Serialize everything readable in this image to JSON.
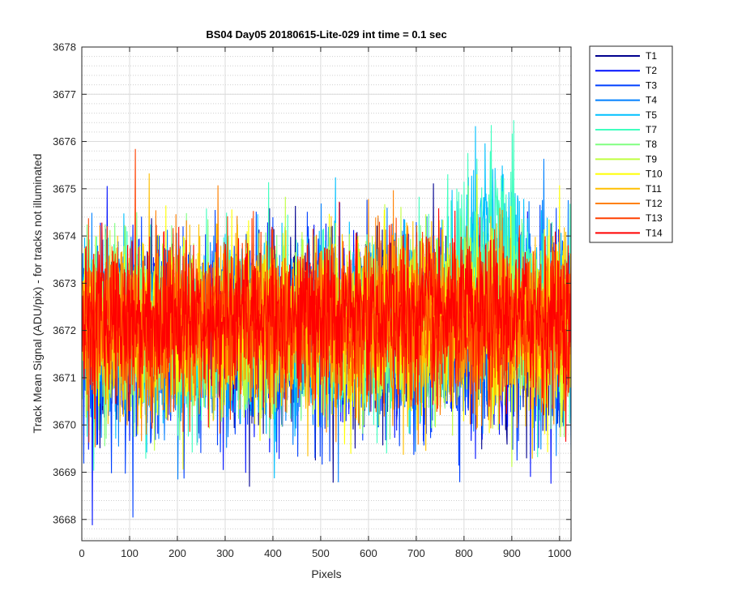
{
  "chart_data": {
    "type": "line",
    "title": "BS04 Day05 20180615-Lite-029 int time = 0.1 sec",
    "xlabel": "Pixels",
    "ylabel": "Track Mean Signal (ADU/pix) - for tracks not illuminated",
    "xlim": [
      0,
      1024
    ],
    "ylim": [
      3667.55,
      3678
    ],
    "xticks": [
      0,
      100,
      200,
      300,
      400,
      500,
      600,
      700,
      800,
      900,
      1000
    ],
    "yticks": [
      3668,
      3669,
      3670,
      3671,
      3672,
      3673,
      3674,
      3675,
      3676,
      3677,
      3678
    ],
    "grid": true,
    "minor_grid": true,
    "legend_position": "outside-top-right",
    "pixel_count": 1024,
    "series": [
      {
        "name": "T1",
        "color": "#00008f",
        "mean": 3672.0,
        "sd": 0.95,
        "bump": 0.0
      },
      {
        "name": "T2",
        "color": "#0010ff",
        "mean": 3671.9,
        "sd": 1.0,
        "bump": 0.0
      },
      {
        "name": "T3",
        "color": "#0040ff",
        "mean": 3671.8,
        "sd": 1.0,
        "bump": 0.0
      },
      {
        "name": "T4",
        "color": "#0080ff",
        "mean": 3672.0,
        "sd": 0.95,
        "bump": 0.6
      },
      {
        "name": "T5",
        "color": "#00c0ff",
        "mean": 3672.1,
        "sd": 0.95,
        "bump": 1.6
      },
      {
        "name": "T7",
        "color": "#40ffbf",
        "mean": 3672.0,
        "sd": 0.95,
        "bump": 1.8
      },
      {
        "name": "T8",
        "color": "#80ff80",
        "mean": 3672.0,
        "sd": 0.9,
        "bump": 0.5
      },
      {
        "name": "T9",
        "color": "#bfff40",
        "mean": 3672.1,
        "sd": 0.9,
        "bump": 0.0
      },
      {
        "name": "T10",
        "color": "#ffff00",
        "mean": 3672.1,
        "sd": 0.9,
        "bump": 0.0
      },
      {
        "name": "T11",
        "color": "#ffbf00",
        "mean": 3672.1,
        "sd": 0.9,
        "bump": 0.0
      },
      {
        "name": "T12",
        "color": "#ff8000",
        "mean": 3672.1,
        "sd": 0.9,
        "bump": 0.0
      },
      {
        "name": "T13",
        "color": "#ff4000",
        "mean": 3672.2,
        "sd": 0.85,
        "bump": 0.0
      },
      {
        "name": "T14",
        "color": "#ff0000",
        "mean": 3672.3,
        "sd": 0.8,
        "bump": 0.0
      }
    ]
  }
}
